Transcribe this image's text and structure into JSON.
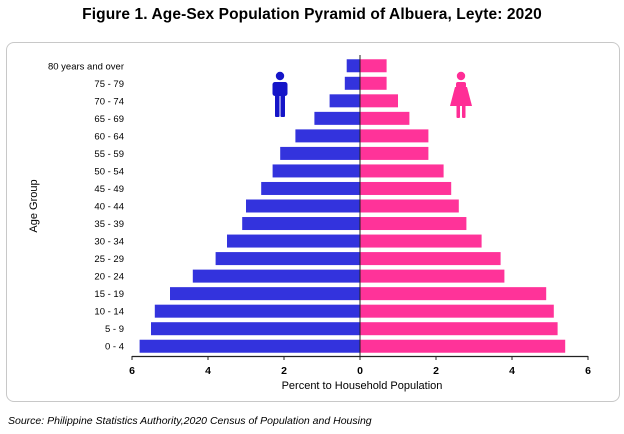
{
  "title": "Figure 1. Age-Sex Population Pyramid of Albuera, Leyte: 2020",
  "source": "Source: Philippine Statistics Authority,2020 Census of Population and Housing",
  "colors": {
    "male": "#3333dd",
    "female": "#ff3399",
    "male_icon": "#1515c8",
    "female_icon": "#ff2d96"
  },
  "icons": {
    "male": "male-person-icon",
    "female": "female-person-icon"
  },
  "chart_data": {
    "type": "bar",
    "orientation": "horizontal-pyramid",
    "title": "",
    "xlabel": "Percent to Household Population",
    "ylabel": "Age Group",
    "xlim": [
      -6,
      6
    ],
    "x_tick_labels": [
      "6",
      "4",
      "2",
      "0",
      "2",
      "4",
      "6"
    ],
    "x_tick_values": [
      -6,
      -4,
      -2,
      0,
      2,
      4,
      6
    ],
    "grid": false,
    "categories": [
      "0 - 4",
      "5 - 9",
      "10 - 14",
      "15 - 19",
      "20 - 24",
      "25 - 29",
      "30 - 34",
      "35 - 39",
      "40 - 44",
      "45 - 49",
      "50 - 54",
      "55 - 59",
      "60 - 64",
      "65 - 69",
      "70 - 74",
      "75 - 79",
      "80 years and over"
    ],
    "series": [
      {
        "values": [
          5.8,
          5.5,
          5.4,
          5.0,
          4.4,
          3.8,
          3.5,
          3.1,
          3.0,
          2.6,
          2.3,
          2.1,
          1.7,
          1.2,
          0.8,
          0.4,
          0.35
        ]
      },
      {
        "values": [
          5.4,
          5.2,
          5.1,
          4.9,
          3.8,
          3.7,
          3.2,
          2.8,
          2.6,
          2.4,
          2.2,
          1.8,
          1.8,
          1.3,
          1.0,
          0.7,
          0.7
        ]
      }
    ]
  }
}
